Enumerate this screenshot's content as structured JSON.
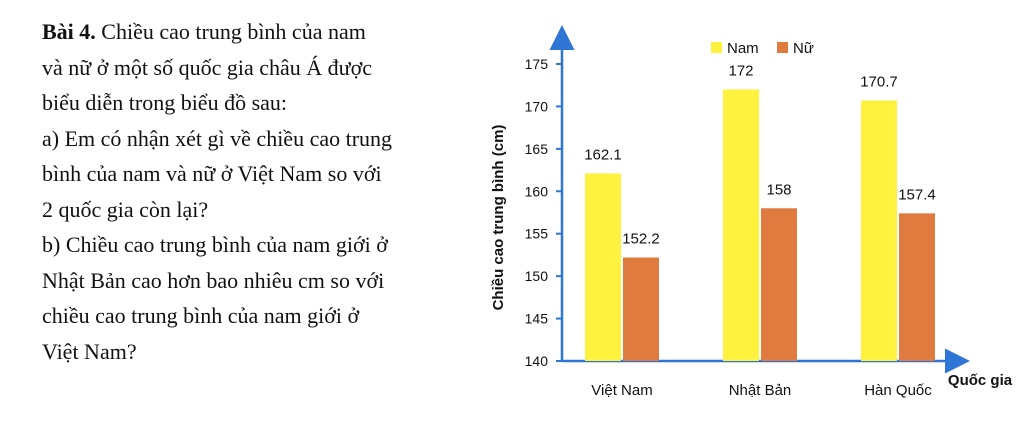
{
  "exercise": {
    "title": "Bài 4.",
    "intro_lines": [
      "Chiều cao trung bình của nam",
      "và nữ ở một số quốc gia châu Á được",
      "biểu diễn trong biểu đồ sau:"
    ],
    "question_a_lines": [
      "a) Em có nhận xét gì về chiều cao trung",
      "bình của nam và nữ ở Việt Nam so với",
      "2 quốc gia còn lại?"
    ],
    "question_b_lines": [
      "b) Chiều cao trung bình của nam giới ở",
      "Nhật Bản cao hơn bao nhiêu cm so với",
      "chiều cao trung bình của nam giới ở",
      "Việt Nam?"
    ]
  },
  "chart_data": {
    "type": "bar",
    "categories": [
      "Việt Nam",
      "Nhật Bản",
      "Hàn Quốc"
    ],
    "series": [
      {
        "name": "Nam",
        "values": [
          162.1,
          172,
          170.7
        ],
        "color": "#FFF23F"
      },
      {
        "name": "Nữ",
        "values": [
          152.2,
          158,
          157.4
        ],
        "color": "#E07B3F"
      }
    ],
    "data_labels": [
      [
        "162.1",
        "172",
        "170.7"
      ],
      [
        "152.2",
        "158",
        "157.4"
      ]
    ],
    "xlabel": "Quốc gia",
    "ylabel": "Chiều cao trung bình (cm)",
    "ylim": [
      140,
      175
    ],
    "yticks": [
      140,
      145,
      150,
      155,
      160,
      165,
      170,
      175
    ],
    "axis_color": "#2E75D6",
    "grid": false,
    "legend_position": "top-right"
  }
}
